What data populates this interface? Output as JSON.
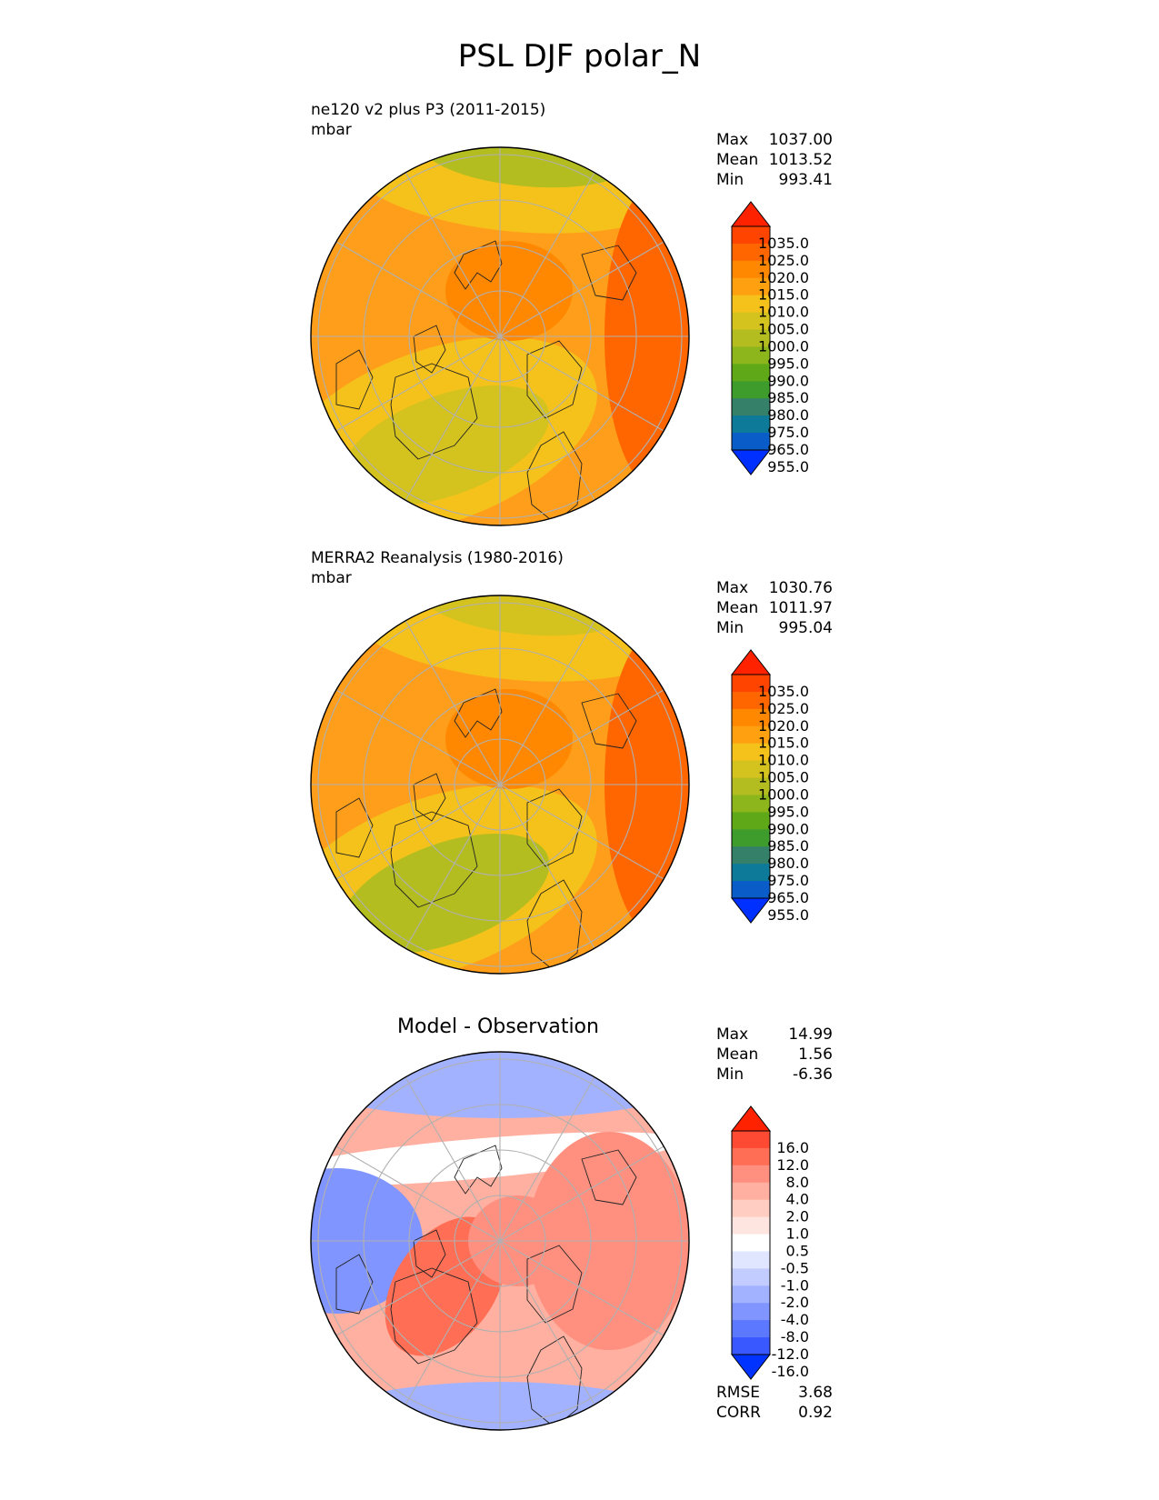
{
  "title": "PSL DJF polar_N",
  "panels": [
    {
      "id": "test",
      "title": "ne120 v2 plus P3 (2011-2015)",
      "units": "mbar",
      "stats": [
        {
          "label": "Max",
          "value": "1037.00"
        },
        {
          "label": "Mean",
          "value": "1013.52"
        },
        {
          "label": "Min",
          "value": "993.41"
        }
      ]
    },
    {
      "id": "ref",
      "title": "MERRA2 Reanalysis (1980-2016)",
      "units": "mbar",
      "stats": [
        {
          "label": "Max",
          "value": "1030.76"
        },
        {
          "label": "Mean",
          "value": "1011.97"
        },
        {
          "label": "Min",
          "value": "995.04"
        }
      ]
    },
    {
      "id": "diff",
      "title": "Model - Observation",
      "stats": [
        {
          "label": "Max",
          "value": "14.99"
        },
        {
          "label": "Mean",
          "value": "1.56"
        },
        {
          "label": "Min",
          "value": "-6.36"
        }
      ],
      "metrics": [
        {
          "label": "RMSE",
          "value": "3.68"
        },
        {
          "label": "CORR",
          "value": "0.92"
        }
      ]
    }
  ],
  "colorbar_psl": {
    "labels": [
      "1035.0",
      "1025.0",
      "1020.0",
      "1015.0",
      "1010.0",
      "1005.0",
      "1000.0",
      "995.0",
      "990.0",
      "985.0",
      "980.0",
      "975.0",
      "965.0",
      "955.0"
    ],
    "colors": [
      "#ff2200",
      "#ff4400",
      "#ff6600",
      "#ff8800",
      "#ffa010",
      "#f5c21b",
      "#d4c21e",
      "#b4bd1f",
      "#8cb61c",
      "#5fa918",
      "#3e9c2c",
      "#358068",
      "#0e7a9a",
      "#0a5dc8",
      "#0030ff"
    ]
  },
  "colorbar_diff": {
    "labels": [
      "16.0",
      "12.0",
      "8.0",
      "4.0",
      "2.0",
      "1.0",
      "0.5",
      "-0.5",
      "-1.0",
      "-2.0",
      "-4.0",
      "-8.0",
      "-12.0",
      "-16.0"
    ],
    "colors": [
      "#ff2200",
      "#ff4a33",
      "#ff6e55",
      "#ff9080",
      "#ffb0a0",
      "#ffcdc2",
      "#ffe5df",
      "#ffffff",
      "#e0e6ff",
      "#c3ccff",
      "#a3b2ff",
      "#8095ff",
      "#5c78ff",
      "#3a58ff",
      "#0033ff"
    ]
  },
  "map_fields": {
    "test": {
      "background": "#ff9e1a",
      "regions": [
        {
          "name": "atlantic-low",
          "color": "#f5c21b"
        },
        {
          "name": "atlantic-low-core",
          "color": "#d4c21e"
        },
        {
          "name": "aleutian-low",
          "color": "#f5c21b"
        },
        {
          "name": "aleutian-low-core",
          "color": "#b4bd1f"
        },
        {
          "name": "siberian-high",
          "color": "#ff6600"
        },
        {
          "name": "arctic-high",
          "color": "#ff8800"
        }
      ]
    },
    "ref": {
      "background": "#ff9e1a",
      "regions": [
        {
          "name": "atlantic-low",
          "color": "#f5c21b"
        },
        {
          "name": "atlantic-low-core",
          "color": "#b4bd1f"
        },
        {
          "name": "aleutian-low",
          "color": "#f5c21b"
        },
        {
          "name": "aleutian-low-core",
          "color": "#d4c21e"
        },
        {
          "name": "siberian-high",
          "color": "#ff6600"
        },
        {
          "name": "arctic-high",
          "color": "#ff8800"
        }
      ]
    },
    "diff": {
      "background": "#ffb0a0",
      "regions": [
        {
          "name": "north-pacific-negative",
          "color": "#a3b2ff"
        },
        {
          "name": "pacific-white-band",
          "color": "#ffffff"
        },
        {
          "name": "canada-negative",
          "color": "#8095ff"
        },
        {
          "name": "greenland-positive",
          "color": "#ff6e55"
        },
        {
          "name": "siberia-positive",
          "color": "#ff9080"
        },
        {
          "name": "europe-positive",
          "color": "#ff9080"
        },
        {
          "name": "atlantic-negative",
          "color": "#a3b2ff"
        }
      ]
    }
  }
}
